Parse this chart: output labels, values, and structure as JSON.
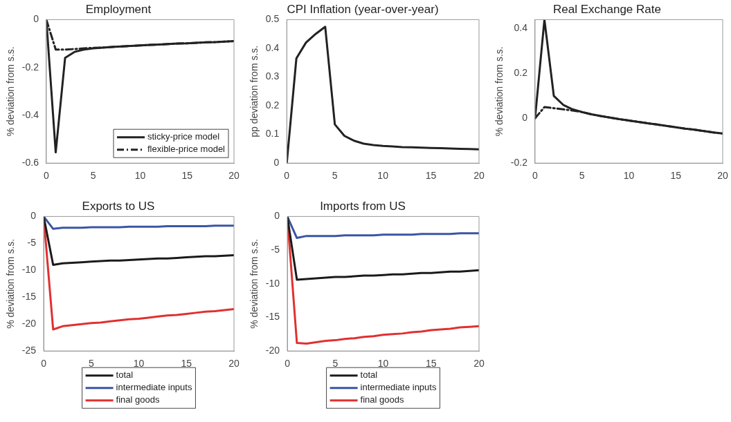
{
  "chart_data": [
    {
      "type": "line",
      "title": "Employment",
      "ylabel": "% deviation from s.s.",
      "x": [
        0,
        1,
        2,
        3,
        4,
        5,
        6,
        7,
        8,
        9,
        10,
        11,
        12,
        13,
        14,
        15,
        16,
        17,
        18,
        19,
        20
      ],
      "xlim": [
        0,
        20
      ],
      "xticks": [
        0,
        5,
        10,
        15,
        20
      ],
      "ylim": [
        -0.6,
        0
      ],
      "yticks": [
        -0.6,
        -0.4,
        -0.2,
        0
      ],
      "grid": false,
      "legend": "bottom right",
      "marker": "none",
      "series": [
        {
          "name": "sticky-price model",
          "color": "#222222",
          "line_style": "solid",
          "values": [
            0,
            -0.555,
            -0.16,
            -0.135,
            -0.125,
            -0.12,
            -0.117,
            -0.114,
            -0.112,
            -0.11,
            -0.108,
            -0.106,
            -0.104,
            -0.102,
            -0.1,
            -0.099,
            -0.097,
            -0.095,
            -0.094,
            -0.092,
            -0.09
          ]
        },
        {
          "name": "flexible-price model",
          "color": "#222222",
          "line_style": "dashed",
          "values": [
            0,
            -0.125,
            -0.125,
            -0.123,
            -0.12,
            -0.118,
            -0.117,
            -0.114,
            -0.112,
            -0.11,
            -0.108,
            -0.106,
            -0.104,
            -0.102,
            -0.1,
            -0.099,
            -0.097,
            -0.095,
            -0.094,
            -0.092,
            -0.09
          ]
        }
      ]
    },
    {
      "type": "line",
      "title": "CPI Inflation (year-over-year)",
      "ylabel": "pp deviation from s.s.",
      "x": [
        0,
        1,
        2,
        3,
        4,
        5,
        6,
        7,
        8,
        9,
        10,
        11,
        12,
        13,
        14,
        15,
        16,
        17,
        18,
        19,
        20
      ],
      "xlim": [
        0,
        20
      ],
      "xticks": [
        0,
        5,
        10,
        15,
        20
      ],
      "ylim": [
        0,
        0.5
      ],
      "yticks": [
        0,
        0.1,
        0.2,
        0.3,
        0.4,
        0.5
      ],
      "grid": false,
      "legend": false,
      "marker": "none",
      "series": [
        {
          "color": "#222222",
          "line_style": "solid",
          "values": [
            0,
            0.365,
            0.42,
            0.45,
            0.475,
            0.135,
            0.095,
            0.078,
            0.068,
            0.063,
            0.06,
            0.058,
            0.056,
            0.055,
            0.054,
            0.053,
            0.052,
            0.051,
            0.05,
            0.049,
            0.048
          ]
        }
      ]
    },
    {
      "type": "line",
      "title": "Real Exchange Rate",
      "ylabel": "% deviation from s.s.",
      "x": [
        0,
        1,
        2,
        3,
        4,
        5,
        6,
        7,
        8,
        9,
        10,
        11,
        12,
        13,
        14,
        15,
        16,
        17,
        18,
        19,
        20
      ],
      "xlim": [
        0,
        20
      ],
      "xticks": [
        0,
        5,
        10,
        15,
        20
      ],
      "ylim": [
        -0.2,
        0.44
      ],
      "yticks": [
        -0.2,
        0,
        0.2,
        0.4
      ],
      "grid": false,
      "legend": false,
      "marker": "none",
      "series": [
        {
          "color": "#222222",
          "line_style": "solid",
          "values": [
            0,
            0.44,
            0.1,
            0.06,
            0.04,
            0.028,
            0.018,
            0.01,
            0.003,
            -0.004,
            -0.01,
            -0.016,
            -0.022,
            -0.028,
            -0.034,
            -0.04,
            -0.046,
            -0.051,
            -0.057,
            -0.063,
            -0.068
          ]
        },
        {
          "color": "#222222",
          "line_style": "dashed",
          "values": [
            0,
            0.05,
            0.045,
            0.04,
            0.035,
            0.028,
            0.018,
            0.01,
            0.003,
            -0.004,
            -0.01,
            -0.016,
            -0.022,
            -0.028,
            -0.034,
            -0.04,
            -0.046,
            -0.051,
            -0.057,
            -0.063,
            -0.068
          ]
        }
      ]
    },
    {
      "type": "line",
      "title": "Exports to US",
      "ylabel": "% deviation from s.s.",
      "x": [
        0,
        1,
        2,
        3,
        4,
        5,
        6,
        7,
        8,
        9,
        10,
        11,
        12,
        13,
        14,
        15,
        16,
        17,
        18,
        19,
        20
      ],
      "xlim": [
        0,
        20
      ],
      "xticks": [
        0,
        5,
        10,
        15,
        20
      ],
      "ylim": [
        -25,
        0
      ],
      "yticks": [
        -25,
        -20,
        -15,
        -10,
        -5,
        0
      ],
      "grid": false,
      "legend": "bottom",
      "marker": "none",
      "series": [
        {
          "name": "total",
          "color": "#1a1a1a",
          "line_style": "solid",
          "values": [
            0,
            -9,
            -8.7,
            -8.6,
            -8.5,
            -8.4,
            -8.3,
            -8.2,
            -8.2,
            -8.1,
            -8,
            -7.9,
            -7.8,
            -7.8,
            -7.7,
            -7.6,
            -7.5,
            -7.4,
            -7.4,
            -7.3,
            -7.2
          ]
        },
        {
          "name": "intermediate inputs",
          "color": "#3a55a4",
          "line_style": "solid",
          "values": [
            0,
            -2.3,
            -2.1,
            -2.1,
            -2.1,
            -2,
            -2,
            -2,
            -2,
            -1.9,
            -1.9,
            -1.9,
            -1.9,
            -1.8,
            -1.8,
            -1.8,
            -1.8,
            -1.8,
            -1.7,
            -1.7,
            -1.7
          ]
        },
        {
          "name": "final goods",
          "color": "#e03030",
          "line_style": "solid",
          "values": [
            0,
            -21,
            -20.4,
            -20.2,
            -20,
            -19.8,
            -19.7,
            -19.5,
            -19.3,
            -19.1,
            -19,
            -18.8,
            -18.6,
            -18.4,
            -18.3,
            -18.1,
            -17.9,
            -17.7,
            -17.6,
            -17.4,
            -17.2
          ]
        }
      ]
    },
    {
      "type": "line",
      "title": "Imports from US",
      "ylabel": "% deviation from s.s.",
      "x": [
        0,
        1,
        2,
        3,
        4,
        5,
        6,
        7,
        8,
        9,
        10,
        11,
        12,
        13,
        14,
        15,
        16,
        17,
        18,
        19,
        20
      ],
      "xlim": [
        0,
        20
      ],
      "xticks": [
        0,
        5,
        10,
        15,
        20
      ],
      "ylim": [
        -20,
        0
      ],
      "yticks": [
        -20,
        -15,
        -10,
        -5,
        0
      ],
      "grid": false,
      "legend": "bottom",
      "marker": "none",
      "series": [
        {
          "name": "total",
          "color": "#1a1a1a",
          "line_style": "solid",
          "values": [
            0,
            -9.4,
            -9.3,
            -9.2,
            -9.1,
            -9,
            -9,
            -8.9,
            -8.8,
            -8.8,
            -8.7,
            -8.6,
            -8.6,
            -8.5,
            -8.4,
            -8.4,
            -8.3,
            -8.2,
            -8.2,
            -8.1,
            -8
          ]
        },
        {
          "name": "intermediate inputs",
          "color": "#3a55a4",
          "line_style": "solid",
          "values": [
            0,
            -3.2,
            -2.9,
            -2.9,
            -2.9,
            -2.9,
            -2.8,
            -2.8,
            -2.8,
            -2.8,
            -2.7,
            -2.7,
            -2.7,
            -2.7,
            -2.6,
            -2.6,
            -2.6,
            -2.6,
            -2.5,
            -2.5,
            -2.5
          ]
        },
        {
          "name": "final goods",
          "color": "#e03030",
          "line_style": "solid",
          "values": [
            0,
            -18.8,
            -18.9,
            -18.7,
            -18.5,
            -18.4,
            -18.2,
            -18.1,
            -17.9,
            -17.8,
            -17.6,
            -17.5,
            -17.4,
            -17.2,
            -17.1,
            -16.9,
            -16.8,
            -16.7,
            -16.5,
            -16.4,
            -16.3
          ]
        }
      ]
    }
  ]
}
